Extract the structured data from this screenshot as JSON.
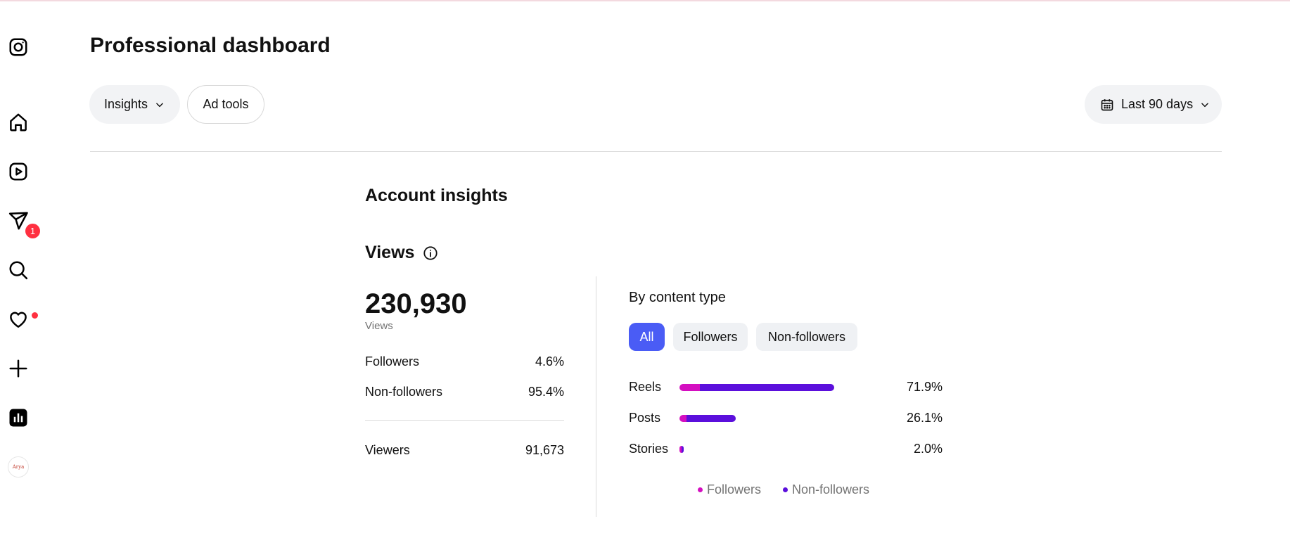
{
  "sidebar": {
    "items": [
      {
        "name": "instagram-logo-icon"
      },
      {
        "name": "home-icon"
      },
      {
        "name": "reels-icon"
      },
      {
        "name": "messages-icon",
        "badge": "1"
      },
      {
        "name": "search-icon"
      },
      {
        "name": "notifications-heart-icon",
        "has_dot": true
      },
      {
        "name": "create-plus-icon"
      },
      {
        "name": "dashboard-chart-icon"
      },
      {
        "name": "profile-avatar",
        "text": "Arya"
      }
    ]
  },
  "header": {
    "title": "Professional dashboard",
    "insights_label": "Insights",
    "ad_tools_label": "Ad tools",
    "date_range_label": "Last 90 days"
  },
  "account_insights": {
    "title": "Account insights",
    "views_title": "Views",
    "total_views": "230,930",
    "total_views_label": "Views",
    "stats": [
      {
        "label": "Followers",
        "value": "4.6%"
      },
      {
        "label": "Non-followers",
        "value": "95.4%"
      }
    ],
    "viewers": {
      "label": "Viewers",
      "value": "91,673"
    }
  },
  "by_content_type": {
    "title": "By content type",
    "filters": [
      {
        "label": "All",
        "active": true
      },
      {
        "label": "Followers",
        "active": false
      },
      {
        "label": "Non-followers",
        "active": false
      }
    ],
    "rows": [
      {
        "label": "Reels",
        "percent": "71.9%",
        "share": 71.9,
        "followers_fraction": 0.13
      },
      {
        "label": "Posts",
        "percent": "26.1%",
        "share": 26.1,
        "followers_fraction": 0.13
      },
      {
        "label": "Stories",
        "percent": "2.0%",
        "share": 2.0,
        "followers_fraction": 0.3
      }
    ],
    "legend": [
      {
        "label": "Followers",
        "color": "#d40fc0"
      },
      {
        "label": "Non-followers",
        "color": "#5b0fdc"
      }
    ]
  },
  "colors": {
    "accent": "#4a5cf5",
    "badge": "#ff3040",
    "followers": "#d40fc0",
    "non_followers": "#5b0fdc"
  }
}
